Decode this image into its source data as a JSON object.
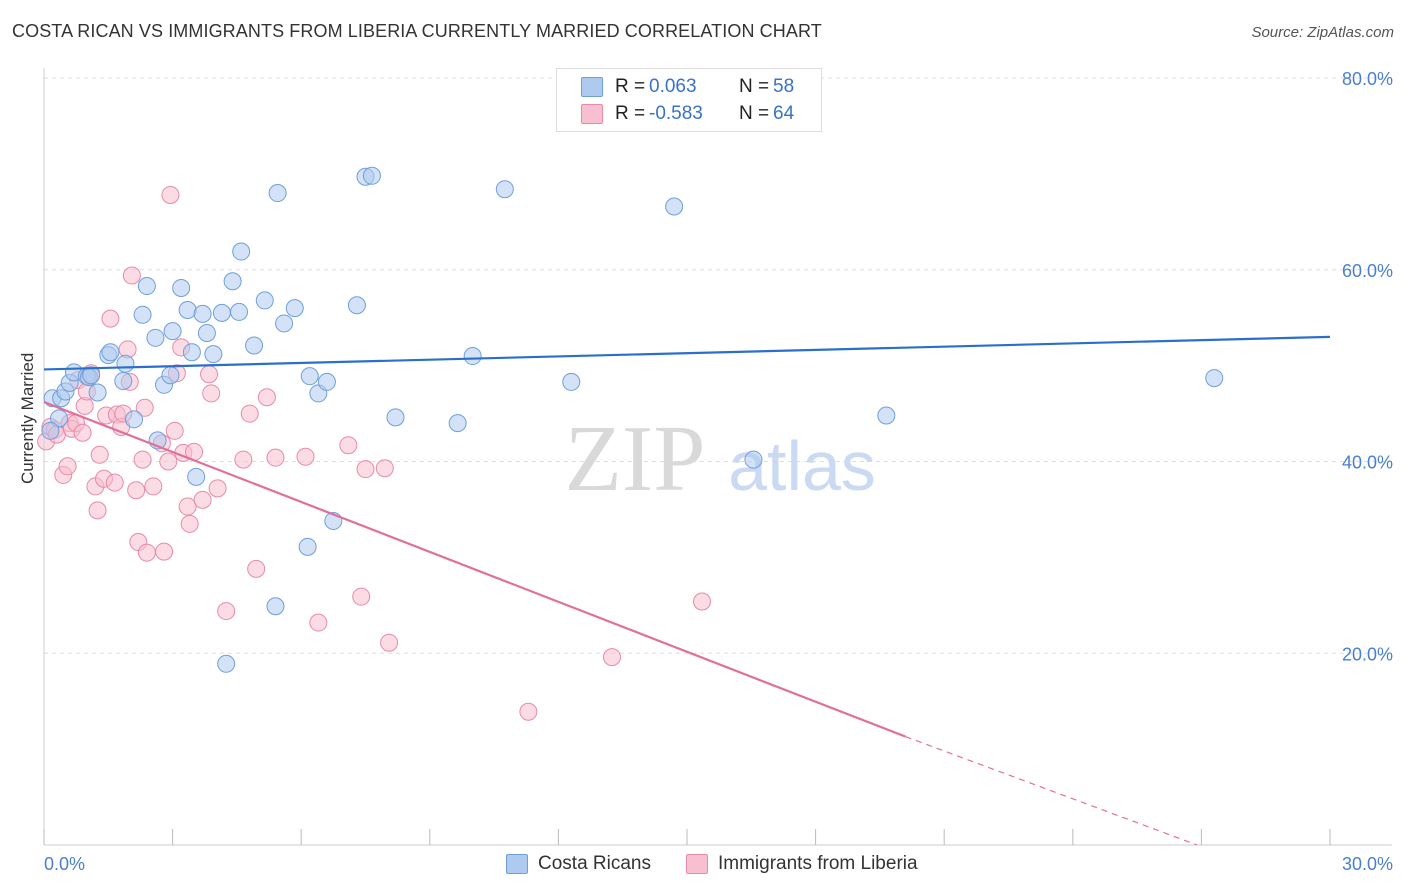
{
  "title": "COSTA RICAN VS IMMIGRANTS FROM LIBERIA CURRENTLY MARRIED CORRELATION CHART",
  "source": "Source: ZipAtlas.com",
  "watermark": {
    "zip": "ZIP",
    "atlas": "atlas"
  },
  "legend": {
    "series1": {
      "r_label": "R =",
      "r_value": "0.063",
      "n_label": "N =",
      "n_value": "58"
    },
    "series2": {
      "r_label": "R =",
      "r_value": "-0.583",
      "n_label": "N =",
      "n_value": "64"
    }
  },
  "bottom_legend": {
    "series1": "Costa Ricans",
    "series2": "Immigrants from Liberia"
  },
  "colors": {
    "blue_fill": "#aecbef",
    "blue_stroke": "#6f9fdb",
    "blue_line": "#2b6fcd",
    "pink_fill": "#f7bfd0",
    "pink_stroke": "#e88aaa",
    "pink_line": "#e0709a",
    "axis_text": "#4a7fd0",
    "grid": "#dddddd"
  },
  "chart_data": {
    "type": "scatter",
    "title": "COSTA RICAN VS IMMIGRANTS FROM LIBERIA CURRENTLY MARRIED CORRELATION CHART",
    "xlabel": "",
    "ylabel": "Currently Married",
    "xlim": [
      0,
      30
    ],
    "ylim": [
      0,
      80
    ],
    "x_tick_labels": [
      "0.0%",
      "30.0%"
    ],
    "y_ticks": [
      20,
      40,
      60,
      80
    ],
    "y_tick_labels": [
      "20.0%",
      "40.0%",
      "60.0%",
      "80.0%"
    ],
    "grid": true,
    "series": [
      {
        "name": "Costa Ricans",
        "trend": {
          "x": [
            0.0,
            30.0
          ],
          "y": [
            49.6,
            53.0
          ]
        },
        "points": [
          [
            0.2,
            46.6
          ],
          [
            0.35,
            44.5
          ],
          [
            0.4,
            46.6
          ],
          [
            0.5,
            47.3
          ],
          [
            0.6,
            48.2
          ],
          [
            0.7,
            49.3
          ],
          [
            1.0,
            48.9
          ],
          [
            1.05,
            48.8
          ],
          [
            1.1,
            49.0
          ],
          [
            1.25,
            47.2
          ],
          [
            1.5,
            51.1
          ],
          [
            1.55,
            51.4
          ],
          [
            1.85,
            48.4
          ],
          [
            1.9,
            50.2
          ],
          [
            2.1,
            44.4
          ],
          [
            2.3,
            55.3
          ],
          [
            2.4,
            58.3
          ],
          [
            2.6,
            52.9
          ],
          [
            2.65,
            42.2
          ],
          [
            2.8,
            48.0
          ],
          [
            2.95,
            49.0
          ],
          [
            3.0,
            53.6
          ],
          [
            3.2,
            58.1
          ],
          [
            3.35,
            55.8
          ],
          [
            3.45,
            51.4
          ],
          [
            3.55,
            38.4
          ],
          [
            3.7,
            55.4
          ],
          [
            3.8,
            53.4
          ],
          [
            3.95,
            51.2
          ],
          [
            4.15,
            55.5
          ],
          [
            4.25,
            18.9
          ],
          [
            4.4,
            58.8
          ],
          [
            4.55,
            55.6
          ],
          [
            4.6,
            61.9
          ],
          [
            4.9,
            52.1
          ],
          [
            5.15,
            56.8
          ],
          [
            5.4,
            24.9
          ],
          [
            5.45,
            68.0
          ],
          [
            5.6,
            54.4
          ],
          [
            5.85,
            56.0
          ],
          [
            6.15,
            31.1
          ],
          [
            6.2,
            48.9
          ],
          [
            6.4,
            47.1
          ],
          [
            6.6,
            48.3
          ],
          [
            6.75,
            33.8
          ],
          [
            7.3,
            56.3
          ],
          [
            7.5,
            69.7
          ],
          [
            7.65,
            69.8
          ],
          [
            8.2,
            44.6
          ],
          [
            9.65,
            44.0
          ],
          [
            10.0,
            51.0
          ],
          [
            10.75,
            68.4
          ],
          [
            12.3,
            48.3
          ],
          [
            14.7,
            66.6
          ],
          [
            16.55,
            40.2
          ],
          [
            19.65,
            44.8
          ],
          [
            27.3,
            48.7
          ],
          [
            0.15,
            43.2
          ]
        ]
      },
      {
        "name": "Immigrants from Liberia",
        "trend": {
          "x": [
            0.0,
            20.1
          ],
          "y": [
            46.2,
            11.3
          ]
        },
        "trend_dashed": {
          "x": [
            20.1,
            26.9
          ],
          "y": [
            11.3,
            0.0
          ]
        },
        "points": [
          [
            0.05,
            42.1
          ],
          [
            0.15,
            43.6
          ],
          [
            0.25,
            43.3
          ],
          [
            0.3,
            42.8
          ],
          [
            0.45,
            38.6
          ],
          [
            0.6,
            44.0
          ],
          [
            0.65,
            43.4
          ],
          [
            0.75,
            44.0
          ],
          [
            0.8,
            48.5
          ],
          [
            0.9,
            43.0
          ],
          [
            0.95,
            45.8
          ],
          [
            1.0,
            47.3
          ],
          [
            1.1,
            49.2
          ],
          [
            1.2,
            37.4
          ],
          [
            1.25,
            34.9
          ],
          [
            1.3,
            40.7
          ],
          [
            1.4,
            38.2
          ],
          [
            1.45,
            44.8
          ],
          [
            1.55,
            54.9
          ],
          [
            1.65,
            37.8
          ],
          [
            1.7,
            44.9
          ],
          [
            1.8,
            43.6
          ],
          [
            1.85,
            45.0
          ],
          [
            1.95,
            51.7
          ],
          [
            2.0,
            48.3
          ],
          [
            2.05,
            59.4
          ],
          [
            2.15,
            37.0
          ],
          [
            2.2,
            31.6
          ],
          [
            2.3,
            40.2
          ],
          [
            2.35,
            45.6
          ],
          [
            2.4,
            30.5
          ],
          [
            2.55,
            37.4
          ],
          [
            2.75,
            41.9
          ],
          [
            2.8,
            30.6
          ],
          [
            2.9,
            40.0
          ],
          [
            2.95,
            67.8
          ],
          [
            3.05,
            43.2
          ],
          [
            3.1,
            49.2
          ],
          [
            3.2,
            51.9
          ],
          [
            3.25,
            40.9
          ],
          [
            3.35,
            35.3
          ],
          [
            3.4,
            33.5
          ],
          [
            3.5,
            41.0
          ],
          [
            3.7,
            36.0
          ],
          [
            3.85,
            49.1
          ],
          [
            3.9,
            47.1
          ],
          [
            4.05,
            37.2
          ],
          [
            4.25,
            24.4
          ],
          [
            4.65,
            40.2
          ],
          [
            4.8,
            45.0
          ],
          [
            4.95,
            28.8
          ],
          [
            5.2,
            46.7
          ],
          [
            5.4,
            40.4
          ],
          [
            6.1,
            40.5
          ],
          [
            6.4,
            23.2
          ],
          [
            7.1,
            41.7
          ],
          [
            7.4,
            25.9
          ],
          [
            7.5,
            39.2
          ],
          [
            7.95,
            39.3
          ],
          [
            8.05,
            21.1
          ],
          [
            11.3,
            13.9
          ],
          [
            13.25,
            19.6
          ],
          [
            15.35,
            25.4
          ],
          [
            0.55,
            39.5
          ]
        ]
      }
    ]
  }
}
